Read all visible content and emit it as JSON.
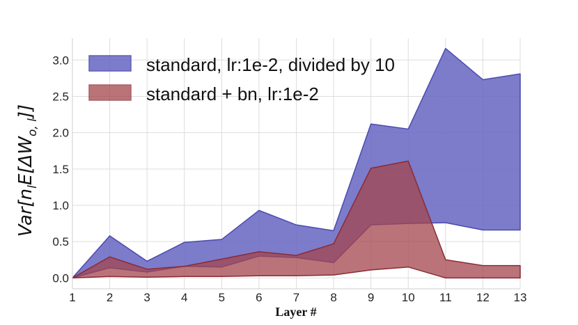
{
  "chart_data": {
    "type": "area",
    "title": "",
    "xlabel": "Layer #",
    "ylabel": "Var[n_l E[ΔW_{o,l}]]",
    "ylabel_parts": {
      "prefix": "Var[",
      "n": "n",
      "n_sub": "l",
      "mid": "E[ΔW",
      "w_sub": "o, l",
      "suffix": "]]"
    },
    "x": [
      1,
      2,
      3,
      4,
      5,
      6,
      7,
      8,
      9,
      10,
      11,
      12,
      13
    ],
    "xlim": [
      1,
      13
    ],
    "ylim": [
      -0.15,
      3.3
    ],
    "x_ticks": [
      "1",
      "2",
      "3",
      "4",
      "5",
      "6",
      "7",
      "8",
      "9",
      "10",
      "11",
      "12",
      "13"
    ],
    "y_ticks": [
      "0.0",
      "0.5",
      "1.0",
      "1.5",
      "2.0",
      "2.5",
      "3.0"
    ],
    "y_tick_values": [
      0,
      0.5,
      1.0,
      1.5,
      2.0,
      2.5,
      3.0
    ],
    "grid": true,
    "legend_position": "top-left",
    "series": [
      {
        "name": "standard, lr:1e-2, divided by 10",
        "color": "#4a4aaf",
        "fill": "#6a6ac4",
        "upper": [
          0.0,
          0.58,
          0.23,
          0.49,
          0.53,
          0.93,
          0.73,
          0.65,
          2.12,
          2.05,
          3.16,
          2.73,
          2.81
        ],
        "lower": [
          0.0,
          0.14,
          0.08,
          0.16,
          0.15,
          0.3,
          0.28,
          0.21,
          0.73,
          0.75,
          0.76,
          0.66,
          0.66
        ]
      },
      {
        "name": "standard + bn, lr:1e-2",
        "color": "#8a2a35",
        "fill": "#a3464c",
        "upper": [
          0.0,
          0.29,
          0.12,
          0.16,
          0.26,
          0.36,
          0.31,
          0.47,
          1.51,
          1.61,
          0.25,
          0.17,
          0.17
        ],
        "lower": [
          0.0,
          0.02,
          0.01,
          0.02,
          0.02,
          0.03,
          0.03,
          0.04,
          0.11,
          0.15,
          0.0,
          0.0,
          0.0
        ]
      }
    ]
  }
}
